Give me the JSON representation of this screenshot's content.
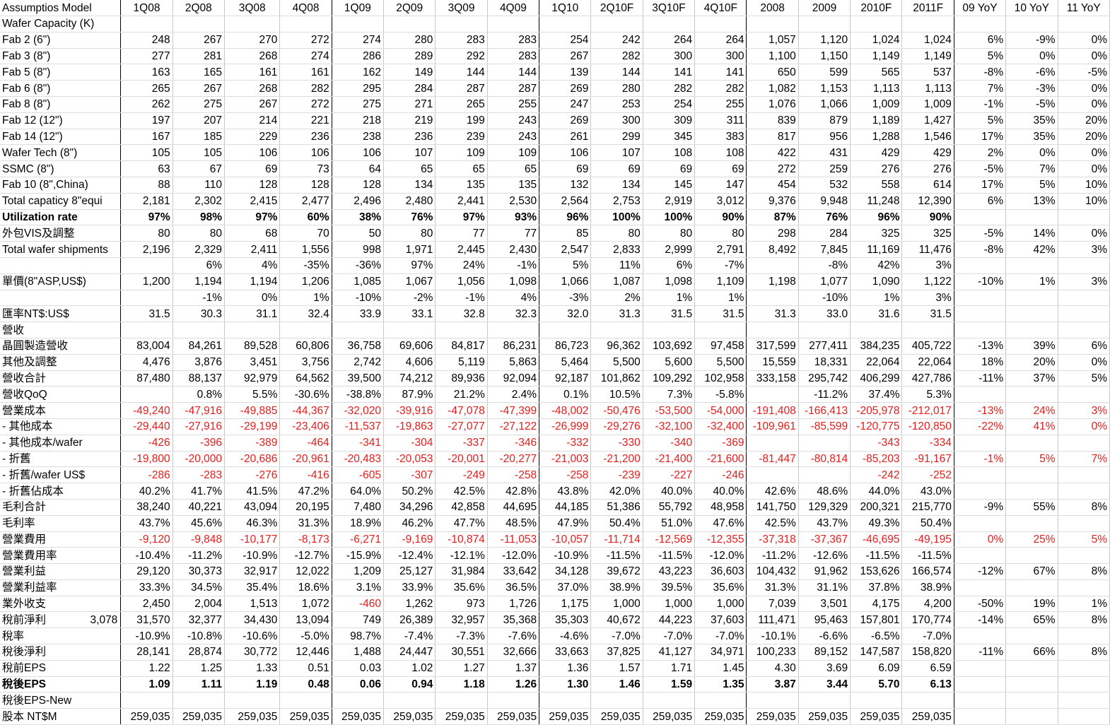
{
  "columns": [
    "Assumptios Model",
    "1Q08",
    "2Q08",
    "3Q08",
    "4Q08",
    "1Q09",
    "2Q09",
    "3Q09",
    "4Q09",
    "1Q10",
    "2Q10F",
    "3Q10F",
    "4Q10F",
    "2008",
    "2009",
    "2010F",
    "2011F",
    "09 YoY",
    "10 YoY",
    "11 YoY"
  ],
  "rows": [
    {
      "label": "Wafer Capacity (K)",
      "values": []
    },
    {
      "label": "Fab 2 (6\")",
      "values": [
        "248",
        "267",
        "270",
        "272",
        "274",
        "280",
        "283",
        "283",
        "254",
        "242",
        "264",
        "264",
        "1,057",
        "1,120",
        "1,024",
        "1,024",
        "6%",
        "-9%",
        "0%"
      ]
    },
    {
      "label": "Fab 3 (8\")",
      "values": [
        "277",
        "281",
        "268",
        "274",
        "286",
        "289",
        "292",
        "283",
        "267",
        "282",
        "300",
        "300",
        "1,100",
        "1,150",
        "1,149",
        "1,149",
        "5%",
        "0%",
        "0%"
      ]
    },
    {
      "label": "Fab 5 (8\")",
      "values": [
        "163",
        "165",
        "161",
        "161",
        "162",
        "149",
        "144",
        "144",
        "139",
        "144",
        "141",
        "141",
        "650",
        "599",
        "565",
        "537",
        "-8%",
        "-6%",
        "-5%"
      ]
    },
    {
      "label": "Fab 6 (8\")",
      "values": [
        "265",
        "267",
        "268",
        "282",
        "295",
        "284",
        "287",
        "287",
        "269",
        "280",
        "282",
        "282",
        "1,082",
        "1,153",
        "1,113",
        "1,113",
        "7%",
        "-3%",
        "0%"
      ]
    },
    {
      "label": "Fab 8 (8\")",
      "values": [
        "262",
        "275",
        "267",
        "272",
        "275",
        "271",
        "265",
        "255",
        "247",
        "253",
        "254",
        "255",
        "1,076",
        "1,066",
        "1,009",
        "1,009",
        "-1%",
        "-5%",
        "0%"
      ]
    },
    {
      "label": "Fab 12 (12\")",
      "values": [
        "197",
        "207",
        "214",
        "221",
        "218",
        "219",
        "199",
        "243",
        "269",
        "300",
        "309",
        "311",
        "839",
        "879",
        "1,189",
        "1,427",
        "5%",
        "35%",
        "20%"
      ]
    },
    {
      "label": "Fab 14 (12\")",
      "values": [
        "167",
        "185",
        "229",
        "236",
        "238",
        "236",
        "239",
        "243",
        "261",
        "299",
        "345",
        "383",
        "817",
        "956",
        "1,288",
        "1,546",
        "17%",
        "35%",
        "20%"
      ]
    },
    {
      "label": "Wafer Tech (8\")",
      "values": [
        "105",
        "105",
        "106",
        "106",
        "106",
        "107",
        "109",
        "109",
        "106",
        "107",
        "108",
        "108",
        "422",
        "431",
        "429",
        "429",
        "2%",
        "0%",
        "0%"
      ]
    },
    {
      "label": "SSMC (8\")",
      "values": [
        "63",
        "67",
        "69",
        "73",
        "64",
        "65",
        "65",
        "65",
        "69",
        "69",
        "69",
        "69",
        "272",
        "259",
        "276",
        "276",
        "-5%",
        "7%",
        "0%"
      ]
    },
    {
      "label": "Fab 10 (8\",China)",
      "values": [
        "88",
        "110",
        "128",
        "128",
        "128",
        "134",
        "135",
        "135",
        "132",
        "134",
        "145",
        "147",
        "454",
        "532",
        "558",
        "614",
        "17%",
        "5%",
        "10%"
      ]
    },
    {
      "label": "Total capaticy 8\"equi",
      "topline": true,
      "values": [
        "2,181",
        "2,302",
        "2,415",
        "2,477",
        "2,496",
        "2,480",
        "2,441",
        "2,530",
        "2,564",
        "2,753",
        "2,919",
        "3,012",
        "9,376",
        "9,948",
        "11,248",
        "12,390",
        "6%",
        "13%",
        "10%"
      ]
    },
    {
      "label": "Utilization rate",
      "bold": true,
      "values": [
        "97%",
        "98%",
        "97%",
        "60%",
        "38%",
        "76%",
        "97%",
        "93%",
        "96%",
        "100%",
        "100%",
        "90%",
        "87%",
        "76%",
        "96%",
        "90%",
        "",
        "",
        ""
      ]
    },
    {
      "label": "外包VIS及調整",
      "values": [
        "80",
        "80",
        "68",
        "70",
        "50",
        "80",
        "77",
        "77",
        "85",
        "80",
        "80",
        "80",
        "298",
        "284",
        "325",
        "325",
        "-5%",
        "14%",
        "0%"
      ]
    },
    {
      "label": "Total wafer shipments",
      "values": [
        "2,196",
        "2,329",
        "2,411",
        "1,556",
        "998",
        "1,971",
        "2,445",
        "2,430",
        "2,547",
        "2,833",
        "2,999",
        "2,791",
        "8,492",
        "7,845",
        "11,169",
        "11,476",
        "-8%",
        "42%",
        "3%"
      ]
    },
    {
      "label": "",
      "topline": true,
      "values": [
        "",
        "6%",
        "4%",
        "-35%",
        "-36%",
        "97%",
        "24%",
        "-1%",
        "5%",
        "11%",
        "6%",
        "-7%",
        "",
        "-8%",
        "42%",
        "3%",
        "",
        "",
        ""
      ]
    },
    {
      "label": "單價(8\"ASP,US$)",
      "values": [
        "1,200",
        "1,194",
        "1,194",
        "1,206",
        "1,085",
        "1,067",
        "1,056",
        "1,098",
        "1,066",
        "1,087",
        "1,098",
        "1,109",
        "1,198",
        "1,077",
        "1,090",
        "1,122",
        "-10%",
        "1%",
        "3%"
      ]
    },
    {
      "label": "",
      "values": [
        "",
        "-1%",
        "0%",
        "1%",
        "-10%",
        "-2%",
        "-1%",
        "4%",
        "-3%",
        "2%",
        "1%",
        "1%",
        "",
        "-10%",
        "1%",
        "3%",
        "",
        "",
        ""
      ]
    },
    {
      "label": "匯率NT$:US$",
      "values": [
        "31.5",
        "30.3",
        "31.1",
        "32.4",
        "33.9",
        "33.1",
        "32.8",
        "32.3",
        "32.0",
        "31.3",
        "31.5",
        "31.5",
        "31.3",
        "33.0",
        "31.6",
        "31.5",
        "",
        "",
        ""
      ]
    },
    {
      "label": "營收",
      "values": []
    },
    {
      "label": "晶圓製造營收",
      "values": [
        "83,004",
        "84,261",
        "89,528",
        "60,806",
        "36,758",
        "69,606",
        "84,817",
        "86,231",
        "86,723",
        "96,362",
        "103,692",
        "97,458",
        "317,599",
        "277,411",
        "384,235",
        "405,722",
        "-13%",
        "39%",
        "6%"
      ]
    },
    {
      "label": "其他及調整",
      "values": [
        "4,476",
        "3,876",
        "3,451",
        "3,756",
        "2,742",
        "4,606",
        "5,119",
        "5,863",
        "5,464",
        "5,500",
        "5,600",
        "5,500",
        "15,559",
        "18,331",
        "22,064",
        "22,064",
        "18%",
        "20%",
        "0%"
      ]
    },
    {
      "label": "營收合計",
      "topline": true,
      "values": [
        "87,480",
        "88,137",
        "92,979",
        "64,562",
        "39,500",
        "74,212",
        "89,936",
        "92,094",
        "92,187",
        "101,862",
        "109,292",
        "102,958",
        "333,158",
        "295,742",
        "406,299",
        "427,786",
        "-11%",
        "37%",
        "5%"
      ]
    },
    {
      "label": "營收QoQ",
      "values": [
        "",
        "0.8%",
        "5.5%",
        "-30.6%",
        "-38.8%",
        "87.9%",
        "21.2%",
        "2.4%",
        "0.1%",
        "10.5%",
        "7.3%",
        "-5.8%",
        "",
        "-11.2%",
        "37.4%",
        "5.3%",
        "",
        "",
        ""
      ]
    },
    {
      "label": "營業成本",
      "topline": true,
      "red": true,
      "values": [
        "-49,240",
        "-47,916",
        "-49,885",
        "-44,367",
        "-32,020",
        "-39,916",
        "-47,078",
        "-47,399",
        "-48,002",
        "-50,476",
        "-53,500",
        "-54,000",
        "-191,408",
        "-166,413",
        "-205,978",
        "-212,017",
        "-13%",
        "24%",
        "3%"
      ]
    },
    {
      "label": "     - 其他成本",
      "red": true,
      "values": [
        "-29,440",
        "-27,916",
        "-29,199",
        "-23,406",
        "-11,537",
        "-19,863",
        "-27,077",
        "-27,122",
        "-26,999",
        "-29,276",
        "-32,100",
        "-32,400",
        "-109,961",
        "-85,599",
        "-120,775",
        "-120,850",
        "-22%",
        "41%",
        "0%"
      ]
    },
    {
      "label": "     - 其他成本/wafer",
      "red": true,
      "values": [
        "-426",
        "-396",
        "-389",
        "-464",
        "-341",
        "-304",
        "-337",
        "-346",
        "-332",
        "-330",
        "-340",
        "-369",
        "",
        "",
        "-343",
        "-334",
        "",
        "",
        ""
      ]
    },
    {
      "label": "     - 折舊",
      "red": true,
      "values": [
        "-19,800",
        "-20,000",
        "-20,686",
        "-20,961",
        "-20,483",
        "-20,053",
        "-20,001",
        "-20,277",
        "-21,003",
        "-21,200",
        "-21,400",
        "-21,600",
        "-81,447",
        "-80,814",
        "-85,203",
        "-91,167",
        "-1%",
        "5%",
        "7%"
      ]
    },
    {
      "label": "     - 折舊/wafer US$",
      "red": true,
      "values": [
        "-286",
        "-283",
        "-276",
        "-416",
        "-605",
        "-307",
        "-249",
        "-258",
        "-258",
        "-239",
        "-227",
        "-246",
        "",
        "",
        "-242",
        "-252",
        "",
        "",
        ""
      ]
    },
    {
      "label": "     - 折舊佔成本",
      "values": [
        "40.2%",
        "41.7%",
        "41.5%",
        "47.2%",
        "64.0%",
        "50.2%",
        "42.5%",
        "42.8%",
        "43.8%",
        "42.0%",
        "40.0%",
        "40.0%",
        "42.6%",
        "48.6%",
        "44.0%",
        "43.0%",
        "",
        "",
        ""
      ]
    },
    {
      "label": "毛利合計",
      "topline": true,
      "values": [
        "38,240",
        "40,221",
        "43,094",
        "20,195",
        "7,480",
        "34,296",
        "42,858",
        "44,695",
        "44,185",
        "51,386",
        "55,792",
        "48,958",
        "141,750",
        "129,329",
        "200,321",
        "215,770",
        "-9%",
        "55%",
        "8%"
      ]
    },
    {
      "label": "毛利率",
      "values": [
        "43.7%",
        "45.6%",
        "46.3%",
        "31.3%",
        "18.9%",
        "46.2%",
        "47.7%",
        "48.5%",
        "47.9%",
        "50.4%",
        "51.0%",
        "47.6%",
        "42.5%",
        "43.7%",
        "49.3%",
        "50.4%",
        "",
        "",
        ""
      ]
    },
    {
      "label": "營業費用",
      "topline": true,
      "red": true,
      "values": [
        "-9,120",
        "-9,848",
        "-10,177",
        "-8,173",
        "-6,271",
        "-9,169",
        "-10,874",
        "-11,053",
        "-10,057",
        "-11,714",
        "-12,569",
        "-12,355",
        "-37,318",
        "-37,367",
        "-46,695",
        "-49,195",
        "0%",
        "25%",
        "5%"
      ]
    },
    {
      "label": "營業費用率",
      "values": [
        "-10.4%",
        "-11.2%",
        "-10.9%",
        "-12.7%",
        "-15.9%",
        "-12.4%",
        "-12.1%",
        "-12.0%",
        "-10.9%",
        "-11.5%",
        "-11.5%",
        "-12.0%",
        "-11.2%",
        "-12.6%",
        "-11.5%",
        "-11.5%",
        "",
        "",
        ""
      ]
    },
    {
      "label": "營業利益",
      "values": [
        "29,120",
        "30,373",
        "32,917",
        "12,022",
        "1,209",
        "25,127",
        "31,984",
        "33,642",
        "34,128",
        "39,672",
        "43,223",
        "36,603",
        "104,432",
        "91,962",
        "153,626",
        "166,574",
        "-12%",
        "67%",
        "8%"
      ]
    },
    {
      "label": "營業利益率",
      "values": [
        "33.3%",
        "34.5%",
        "35.4%",
        "18.6%",
        "3.1%",
        "33.9%",
        "35.6%",
        "36.5%",
        "37.0%",
        "38.9%",
        "39.5%",
        "35.6%",
        "31.3%",
        "31.1%",
        "37.8%",
        "38.9%",
        "",
        "",
        ""
      ]
    },
    {
      "label": "業外收支",
      "values": [
        "2,450",
        "2,004",
        "1,513",
        "1,072",
        "-460",
        "1,262",
        "973",
        "1,726",
        "1,175",
        "1,000",
        "1,000",
        "1,000",
        "7,039",
        "3,501",
        "4,175",
        "4,200",
        "-50%",
        "19%",
        "1%"
      ]
    },
    {
      "label": "稅前淨利",
      "aux": "3,078",
      "topline": true,
      "values": [
        "31,570",
        "32,377",
        "34,430",
        "13,094",
        "749",
        "26,389",
        "32,957",
        "35,368",
        "35,303",
        "40,672",
        "44,223",
        "37,603",
        "111,471",
        "95,463",
        "157,801",
        "170,774",
        "-14%",
        "65%",
        "8%"
      ]
    },
    {
      "label": "稅率",
      "values": [
        "-10.9%",
        "-10.8%",
        "-10.6%",
        "-5.0%",
        "98.7%",
        "-7.4%",
        "-7.3%",
        "-7.6%",
        "-4.6%",
        "-7.0%",
        "-7.0%",
        "-7.0%",
        "-10.1%",
        "-6.6%",
        "-6.5%",
        "-7.0%",
        "",
        "",
        ""
      ]
    },
    {
      "label": "稅後淨利",
      "values": [
        "28,141",
        "28,874",
        "30,772",
        "12,446",
        "1,488",
        "24,447",
        "30,551",
        "32,666",
        "33,663",
        "37,825",
        "41,127",
        "34,971",
        "100,233",
        "89,152",
        "147,587",
        "158,820",
        "-11%",
        "66%",
        "8%"
      ]
    },
    {
      "label": "稅前EPS",
      "topline": true,
      "values": [
        "1.22",
        "1.25",
        "1.33",
        "0.51",
        "0.03",
        "1.02",
        "1.27",
        "1.37",
        "1.36",
        "1.57",
        "1.71",
        "1.45",
        "4.30",
        "3.69",
        "6.09",
        "6.59",
        "",
        "",
        ""
      ]
    },
    {
      "label": "稅後EPS",
      "bold": true,
      "values": [
        "1.09",
        "1.11",
        "1.19",
        "0.48",
        "0.06",
        "0.94",
        "1.18",
        "1.26",
        "1.30",
        "1.46",
        "1.59",
        "1.35",
        "3.87",
        "3.44",
        "5.70",
        "6.13",
        "",
        "",
        ""
      ]
    },
    {
      "label": "稅後EPS-New",
      "topline": true,
      "values": []
    },
    {
      "label": "股本 NT$M",
      "values": [
        "259,035",
        "259,035",
        "259,035",
        "259,035",
        "259,035",
        "259,035",
        "259,035",
        "259,035",
        "259,035",
        "259,035",
        "259,035",
        "259,035",
        "259,035",
        "259,035",
        "259,035",
        "259,035",
        "",
        "",
        ""
      ]
    }
  ],
  "colors": {
    "negative": "#e81c1c",
    "gridline": "#c8c8c8",
    "separator": "#000000"
  }
}
